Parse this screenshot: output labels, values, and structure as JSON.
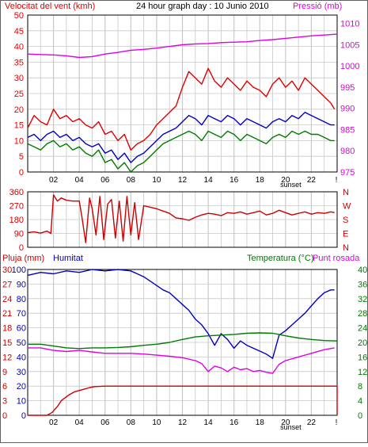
{
  "header": {
    "wind_title": "Velocitat del vent (kmh)",
    "date_title": "24 hour graph day : 10 Junio 2010",
    "pressure_title": "Pressió (mb)"
  },
  "colors": {
    "grid": "#c8c8c8",
    "frame": "#000000",
    "red": "#e00000",
    "dark_red": "#cc0000",
    "blue": "#0000c0",
    "green": "#007a00",
    "magenta": "#e000e0",
    "frame_border": "#606060"
  },
  "x_axis": {
    "tick_labels": [
      "02",
      "04",
      "06",
      "08",
      "10",
      "12",
      "14",
      "16",
      "18",
      "20",
      "22",
      "!"
    ],
    "tick_hours": [
      2,
      4,
      6,
      8,
      10,
      12,
      14,
      16,
      18,
      20,
      22,
      24
    ],
    "sunset_label": "sunset",
    "sunset_hour": 20.4
  },
  "wind_panel": {
    "left_axis_labels": [
      "50",
      "45",
      "40",
      "35",
      "30",
      "25",
      "20",
      "15",
      "10",
      "5",
      "0"
    ],
    "right_axis_labels": [
      "1010",
      "1005",
      "1000",
      "995",
      "990",
      "985",
      "980",
      "975"
    ],
    "left_range": [
      0,
      50
    ],
    "right_range": [
      975,
      1012
    ]
  },
  "direction_panel": {
    "left_axis_labels": [
      "360",
      "270",
      "180",
      "90",
      "0"
    ],
    "right_axis_labels": [
      "N",
      "W",
      "S",
      "E",
      "N"
    ],
    "range": [
      0,
      360
    ]
  },
  "bottom_panel": {
    "rain_title": "Pluja (mm)",
    "humidity_title": "Humitat",
    "temperature_title": "Temperatura (°C)",
    "dewpoint_title": "Punt rosada",
    "humidity_labels": [
      "100",
      "90",
      "80",
      "70",
      "60",
      "50",
      "40",
      "30",
      "20",
      "10",
      "0"
    ],
    "rain_labels": [
      "30",
      "27",
      "24",
      "21",
      "18",
      "15",
      "12",
      "9",
      "6",
      "3",
      "0"
    ],
    "temp_labels": [
      "40",
      "36",
      "32",
      "28",
      "24",
      "20",
      "16",
      "12",
      "8",
      "4",
      "0"
    ],
    "humidity_range": [
      0,
      100
    ],
    "rain_range": [
      0,
      30
    ],
    "temp_range": [
      0,
      40
    ]
  },
  "chart_data": [
    {
      "type": "line",
      "title": "24 hour graph day : 10 Junio 2010",
      "ylabel": "Velocitat del vent (kmh)",
      "ylabel_right": "Pressió (mb)",
      "ylim": [
        0,
        50
      ],
      "ylim_right": [
        975,
        1012
      ],
      "xlim": [
        0,
        24
      ],
      "grid": true,
      "series": [
        {
          "name": "gust",
          "color": "#e00000",
          "x": [
            0,
            0.5,
            1,
            1.5,
            2,
            2.5,
            3,
            3.5,
            4,
            4.5,
            5,
            5.5,
            6,
            6.5,
            7,
            7.5,
            8,
            8.5,
            9,
            9.5,
            10,
            10.5,
            11,
            11.5,
            12,
            12.5,
            13,
            13.5,
            14,
            14.5,
            15,
            15.5,
            16,
            16.5,
            17,
            17.5,
            18,
            18.5,
            19,
            19.5,
            20,
            20.5,
            21,
            21.5,
            22,
            22.5,
            23,
            23.5,
            23.8
          ],
          "y": [
            14,
            18,
            16,
            15,
            20,
            17,
            18,
            16,
            17,
            15,
            14,
            16,
            12,
            13,
            10,
            12,
            7,
            9,
            10,
            12,
            15,
            17,
            19,
            21,
            27,
            32,
            30,
            28,
            33,
            29,
            27,
            30,
            28,
            26,
            29,
            27,
            26,
            24,
            28,
            30,
            27,
            29,
            26,
            30,
            28,
            26,
            24,
            22,
            20
          ]
        },
        {
          "name": "average",
          "color": "#0000c0",
          "x": [
            0,
            0.5,
            1,
            1.5,
            2,
            2.5,
            3,
            3.5,
            4,
            4.5,
            5,
            5.5,
            6,
            6.5,
            7,
            7.5,
            8,
            8.5,
            9,
            9.5,
            10,
            10.5,
            11,
            11.5,
            12,
            12.5,
            13,
            13.5,
            14,
            14.5,
            15,
            15.5,
            16,
            16.5,
            17,
            17.5,
            18,
            18.5,
            19,
            19.5,
            20,
            20.5,
            21,
            21.5,
            22,
            22.5,
            23,
            23.5,
            23.8
          ],
          "y": [
            11,
            12,
            10,
            12,
            13,
            11,
            12,
            10,
            11,
            9,
            8,
            9,
            6,
            7,
            4,
            6,
            3,
            5,
            6,
            8,
            10,
            12,
            13,
            14,
            16,
            18,
            17,
            15,
            18,
            17,
            16,
            18,
            17,
            15,
            17,
            16,
            15,
            14,
            16,
            17,
            16,
            18,
            17,
            19,
            18,
            17,
            16,
            15,
            15
          ]
        },
        {
          "name": "wind_low",
          "color": "#007a00",
          "x": [
            0,
            0.5,
            1,
            1.5,
            2,
            2.5,
            3,
            3.5,
            4,
            4.5,
            5,
            5.5,
            6,
            6.5,
            7,
            7.5,
            8,
            8.5,
            9,
            9.5,
            10,
            10.5,
            11,
            11.5,
            12,
            12.5,
            13,
            13.5,
            14,
            14.5,
            15,
            15.5,
            16,
            16.5,
            17,
            17.5,
            18,
            18.5,
            19,
            19.5,
            20,
            20.5,
            21,
            21.5,
            22,
            22.5,
            23,
            23.5,
            23.8
          ],
          "y": [
            9,
            8,
            7,
            9,
            10,
            8,
            9,
            7,
            8,
            6,
            5,
            7,
            3,
            4,
            1,
            3,
            0,
            2,
            3,
            5,
            7,
            9,
            10,
            11,
            12,
            13,
            12,
            10,
            13,
            12,
            11,
            13,
            12,
            10,
            12,
            11,
            10,
            9,
            11,
            12,
            11,
            13,
            12,
            13,
            12,
            12,
            11,
            10,
            10
          ]
        },
        {
          "name": "pressure",
          "color": "#e000e0",
          "axis": "right",
          "x": [
            0,
            1,
            2,
            3,
            4,
            5,
            6,
            7,
            8,
            9,
            10,
            11,
            12,
            13,
            14,
            15,
            16,
            17,
            18,
            19,
            20,
            21,
            22,
            23,
            24
          ],
          "y": [
            1002.8,
            1002.7,
            1002.6,
            1002.4,
            1002.0,
            1002.2,
            1002.8,
            1003.2,
            1003.7,
            1003.9,
            1004.2,
            1004.6,
            1005.0,
            1005.2,
            1005.3,
            1005.5,
            1005.6,
            1005.7,
            1006.0,
            1006.2,
            1006.5,
            1006.8,
            1007.1,
            1007.3,
            1007.5
          ]
        }
      ]
    },
    {
      "type": "line",
      "ylabel": "",
      "ylim": [
        0,
        360
      ],
      "xlim": [
        0,
        24
      ],
      "grid": true,
      "series": [
        {
          "name": "direction",
          "color": "#cc0000",
          "x": [
            0,
            0.5,
            1,
            1.5,
            1.8,
            2,
            2.3,
            2.6,
            3,
            3.5,
            4,
            4.2,
            4.5,
            4.8,
            5,
            5.3,
            5.6,
            5.9,
            6.2,
            6.5,
            6.8,
            7.1,
            7.4,
            7.7,
            8,
            8.3,
            8.6,
            9,
            9.5,
            10,
            10.5,
            11,
            11.5,
            12,
            12.5,
            13,
            13.5,
            14,
            14.5,
            15,
            15.5,
            16,
            16.5,
            17,
            17.5,
            18,
            18.5,
            19,
            19.5,
            20,
            20.5,
            21,
            21.5,
            22,
            22.5,
            23,
            23.5,
            23.8
          ],
          "y": [
            95,
            100,
            92,
            105,
            90,
            340,
            300,
            320,
            305,
            300,
            300,
            200,
            30,
            320,
            250,
            80,
            330,
            50,
            280,
            310,
            60,
            300,
            40,
            330,
            80,
            290,
            50,
            270,
            260,
            250,
            235,
            220,
            190,
            185,
            175,
            195,
            210,
            220,
            215,
            205,
            225,
            220,
            230,
            215,
            225,
            235,
            210,
            220,
            240,
            225,
            210,
            220,
            230,
            215,
            225,
            220,
            230,
            225
          ]
        }
      ]
    },
    {
      "type": "line",
      "ylabel": "Humitat",
      "ylabel_left_outer": "Pluja (mm)",
      "ylabel_right": "Temperatura (°C)",
      "ylabel_right_2": "Punt rosada",
      "ylim": [
        0,
        100
      ],
      "ylim_rain": [
        0,
        30
      ],
      "ylim_right": [
        0,
        40
      ],
      "xlim": [
        0,
        24
      ],
      "grid": true,
      "series": [
        {
          "name": "humidity",
          "color": "#0000c0",
          "axis": "humidity",
          "x": [
            0,
            1,
            2,
            3,
            4,
            5,
            6,
            7,
            8,
            8.5,
            9,
            9.5,
            10,
            10.5,
            11,
            11.5,
            12,
            12.5,
            13,
            13.5,
            14,
            14.5,
            15,
            15.5,
            16,
            16.5,
            17,
            17.5,
            18,
            18.5,
            19,
            19.5,
            20,
            20.5,
            21,
            21.5,
            22,
            22.5,
            23,
            23.5,
            23.8
          ],
          "y": [
            96,
            98,
            97,
            99,
            98,
            100,
            99,
            100,
            99,
            97,
            95,
            92,
            89,
            86,
            84,
            80,
            76,
            72,
            66,
            62,
            56,
            48,
            56,
            52,
            46,
            51,
            48,
            46,
            44,
            42,
            39,
            55,
            58,
            62,
            66,
            70,
            75,
            80,
            84,
            86,
            86
          ]
        },
        {
          "name": "temperature",
          "color": "#007a00",
          "axis": "temp",
          "x": [
            0,
            1,
            2,
            3,
            4,
            5,
            6,
            7,
            8,
            9,
            10,
            11,
            12,
            13,
            14,
            15,
            16,
            17,
            18,
            19,
            20,
            21,
            22,
            23,
            24
          ],
          "y": [
            19.5,
            19.5,
            19.0,
            18.5,
            18.3,
            18.5,
            18.5,
            18.6,
            18.8,
            19.2,
            19.5,
            20.0,
            20.8,
            21.5,
            21.8,
            22.0,
            22.2,
            22.5,
            22.6,
            22.5,
            21.8,
            21.2,
            20.8,
            20.5,
            20.4
          ]
        },
        {
          "name": "dew_point",
          "color": "#e000e0",
          "axis": "temp",
          "x": [
            0,
            1,
            2,
            3,
            4,
            5,
            6,
            7,
            8,
            9,
            10,
            11,
            12,
            13,
            13.5,
            14,
            14.5,
            15,
            15.5,
            16,
            16.5,
            17,
            17.5,
            18,
            18.5,
            19,
            19.5,
            20,
            21,
            22,
            23,
            23.8
          ],
          "y": [
            18.5,
            18.5,
            17.8,
            17.5,
            17.8,
            17.4,
            17.0,
            17.0,
            17.0,
            16.8,
            16.5,
            16.2,
            15.8,
            15.0,
            14.2,
            12.0,
            13.5,
            13.0,
            12.0,
            13.2,
            12.5,
            12.8,
            12.0,
            12.3,
            11.8,
            11.5,
            14.0,
            15.0,
            16.0,
            17.0,
            18.0,
            18.5
          ]
        },
        {
          "name": "rain",
          "color": "#cc0000",
          "axis": "rain",
          "x": [
            0,
            1.5,
            1.9,
            2.1,
            2.3,
            2.6,
            2.9,
            3.2,
            3.6,
            4,
            4.4,
            4.8,
            5.2,
            6,
            24,
            24
          ],
          "y": [
            0,
            0,
            0.6,
            1.2,
            1.8,
            3.0,
            3.6,
            4.2,
            4.8,
            5.1,
            5.4,
            5.7,
            5.9,
            6.0,
            6.0,
            0
          ]
        }
      ]
    }
  ]
}
